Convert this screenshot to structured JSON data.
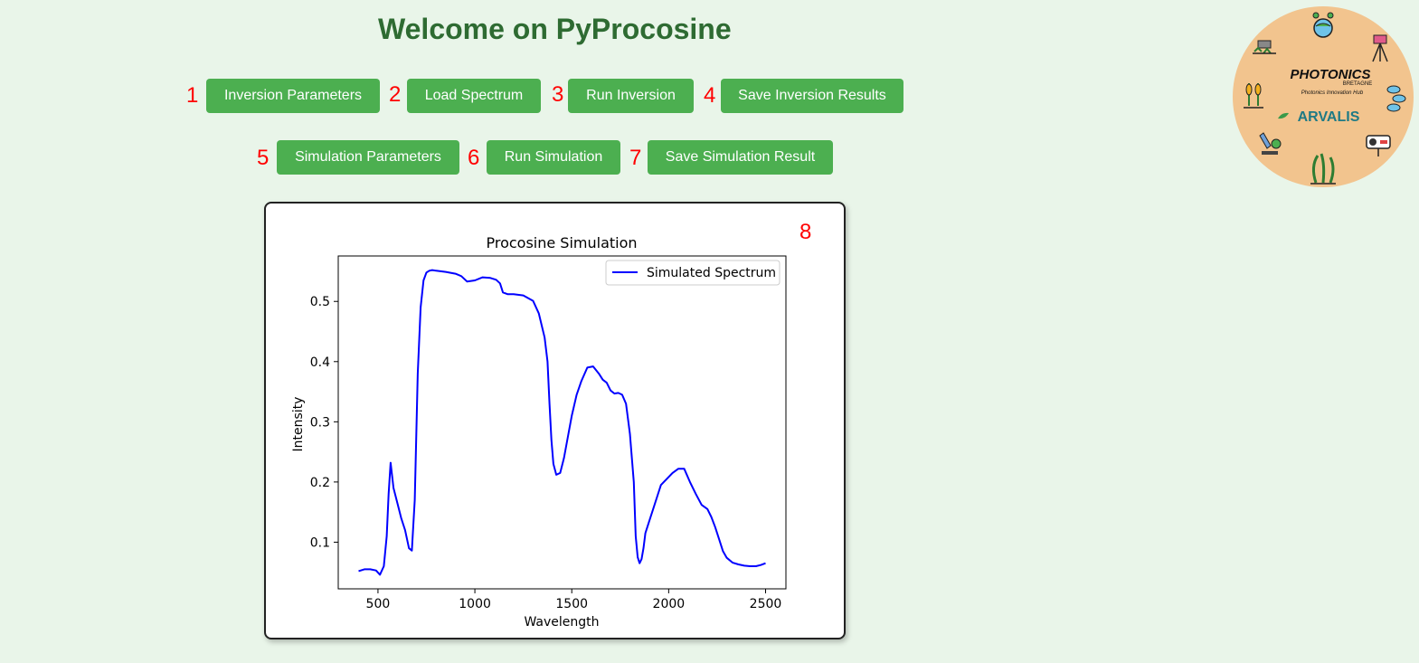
{
  "header": {
    "title": "Welcome on PyProcosine"
  },
  "toolbar_row1": [
    {
      "number": "1",
      "label": "Inversion Parameters"
    },
    {
      "number": "2",
      "label": "Load Spectrum"
    },
    {
      "number": "3",
      "label": "Run Inversion"
    },
    {
      "number": "4",
      "label": "Save Inversion Results"
    }
  ],
  "toolbar_row2": [
    {
      "number": "5",
      "label": "Simulation Parameters"
    },
    {
      "number": "6",
      "label": "Run Simulation"
    },
    {
      "number": "7",
      "label": "Save Simulation Result"
    }
  ],
  "chart_panel": {
    "number": "8"
  },
  "logo": {
    "brand": "PHOTONICS",
    "brand_sub": "BRETAGNE",
    "tagline": "Photonics Innovation Hub",
    "partner": "ARVALIS"
  },
  "colors": {
    "background": "#e9f5e9",
    "title": "#2e6b32",
    "button": "#4caf50",
    "step_number": "#ff0000",
    "series": "#0000ff",
    "logo_bg": "#f2c48e"
  },
  "chart_data": {
    "type": "line",
    "title": "Procosine Simulation",
    "xlabel": "Wavelength",
    "ylabel": "Intensity",
    "xlim": [
      295,
      2605
    ],
    "ylim": [
      0.0225,
      0.5755
    ],
    "xticks": [
      500,
      1000,
      1500,
      2000,
      2500
    ],
    "yticks": [
      0.1,
      0.2,
      0.3,
      0.4,
      0.5
    ],
    "grid": false,
    "legend": "upper right",
    "series": [
      {
        "name": "Simulated Spectrum",
        "color": "#0000ff",
        "x": [
          400,
          430,
          460,
          490,
          510,
          530,
          545,
          555,
          565,
          580,
          600,
          620,
          640,
          660,
          675,
          690,
          705,
          720,
          735,
          750,
          765,
          780,
          800,
          850,
          900,
          930,
          960,
          1000,
          1040,
          1080,
          1110,
          1130,
          1145,
          1170,
          1200,
          1250,
          1300,
          1330,
          1360,
          1375,
          1385,
          1395,
          1405,
          1420,
          1440,
          1460,
          1480,
          1500,
          1525,
          1550,
          1580,
          1610,
          1640,
          1660,
          1680,
          1700,
          1720,
          1740,
          1760,
          1780,
          1800,
          1820,
          1830,
          1840,
          1850,
          1860,
          1870,
          1880,
          1900,
          1920,
          1940,
          1960,
          1990,
          2020,
          2050,
          2080,
          2110,
          2140,
          2170,
          2200,
          2220,
          2240,
          2260,
          2280,
          2300,
          2330,
          2360,
          2390,
          2420,
          2450,
          2475,
          2500
        ],
        "values": [
          0.052,
          0.055,
          0.055,
          0.053,
          0.046,
          0.06,
          0.11,
          0.18,
          0.232,
          0.19,
          0.165,
          0.14,
          0.12,
          0.09,
          0.086,
          0.17,
          0.38,
          0.49,
          0.535,
          0.548,
          0.551,
          0.552,
          0.551,
          0.549,
          0.546,
          0.542,
          0.533,
          0.535,
          0.54,
          0.539,
          0.536,
          0.53,
          0.515,
          0.512,
          0.512,
          0.51,
          0.501,
          0.48,
          0.44,
          0.4,
          0.33,
          0.27,
          0.23,
          0.212,
          0.215,
          0.24,
          0.275,
          0.31,
          0.345,
          0.368,
          0.39,
          0.392,
          0.38,
          0.37,
          0.365,
          0.352,
          0.347,
          0.348,
          0.345,
          0.33,
          0.28,
          0.2,
          0.11,
          0.075,
          0.065,
          0.072,
          0.09,
          0.115,
          0.135,
          0.155,
          0.175,
          0.195,
          0.205,
          0.215,
          0.222,
          0.222,
          0.2,
          0.18,
          0.162,
          0.155,
          0.142,
          0.125,
          0.105,
          0.085,
          0.074,
          0.066,
          0.063,
          0.061,
          0.06,
          0.06,
          0.062,
          0.065
        ]
      }
    ]
  }
}
